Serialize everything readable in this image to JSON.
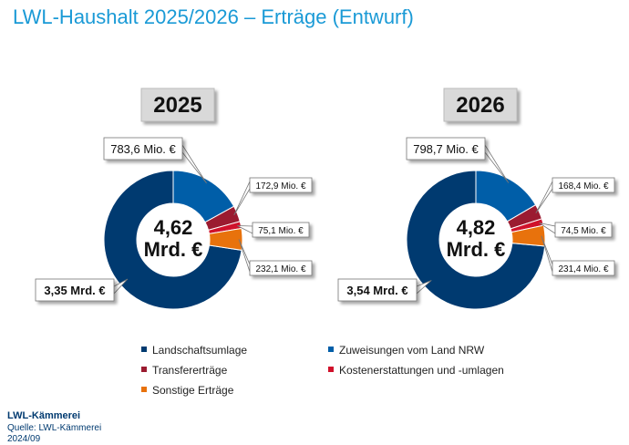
{
  "title": "LWL-Haushalt 2025/2026 – Erträge (Entwurf)",
  "footer": {
    "org": "LWL-Kämmerei",
    "source": "Quelle: LWL-Kämmerei",
    "date": "2024/09"
  },
  "chart_data": [
    {
      "type": "donut",
      "title": "2025",
      "center_label": "4,62 Mrd. €",
      "categories": [
        "Landschaftsumlage",
        "Zuweisungen vom Land NRW",
        "Transfererträge",
        "Kostenerstattungen und -umlagen",
        "Sonstige Erträge"
      ],
      "values": [
        3350,
        783.6,
        172.9,
        75.1,
        232.1
      ],
      "value_labels": [
        "3,35 Mrd. €",
        "783,6 Mio. €",
        "172,9 Mio. €",
        "75,1 Mio. €",
        "232,1 Mio. €"
      ],
      "colors": [
        "#003a70",
        "#005ea8",
        "#9b1b30",
        "#d0112b",
        "#e8720c"
      ]
    },
    {
      "type": "donut",
      "title": "2026",
      "center_label": "4,82 Mrd. €",
      "categories": [
        "Landschaftsumlage",
        "Zuweisungen vom Land NRW",
        "Transfererträge",
        "Kostenerstattungen und -umlagen",
        "Sonstige Erträge"
      ],
      "values": [
        3540,
        798.7,
        168.4,
        74.5,
        231.4
      ],
      "value_labels": [
        "3,54 Mrd. €",
        "798,7 Mio. €",
        "168,4 Mio. €",
        "74,5 Mio. €",
        "231,4 Mio. €"
      ],
      "colors": [
        "#003a70",
        "#005ea8",
        "#9b1b30",
        "#d0112b",
        "#e8720c"
      ]
    }
  ]
}
